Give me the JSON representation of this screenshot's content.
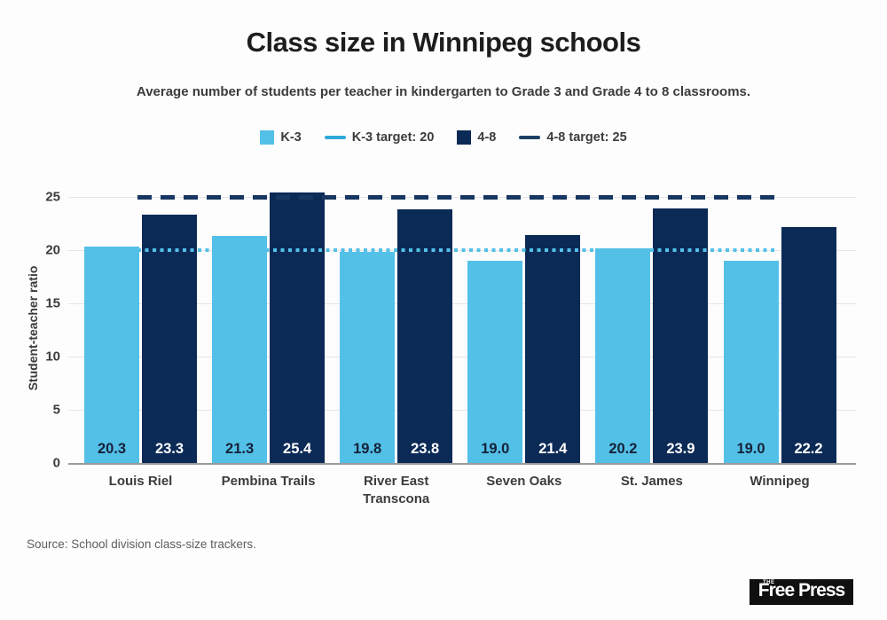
{
  "header": {
    "title": "Class size in Winnipeg schools",
    "subtitle": "Average number of students per teacher in kindergarten to Grade 3 and Grade 4 to 8 classrooms."
  },
  "legend": {
    "items": [
      {
        "label": "K-3",
        "swatch": "square",
        "color": "#53c0e8"
      },
      {
        "label": "K-3 target: 20",
        "swatch": "line",
        "color": "#2fa9da"
      },
      {
        "label": "4-8",
        "swatch": "square",
        "color": "#0c2a56"
      },
      {
        "label": "4-8 target: 25",
        "swatch": "line",
        "color": "#1d4066"
      }
    ]
  },
  "chart_data": {
    "type": "bar",
    "title": "Class size in Winnipeg schools",
    "ylabel": "Student-teacher ratio",
    "ylim": [
      0,
      25
    ],
    "yticks": [
      0,
      5,
      10,
      15,
      20,
      25
    ],
    "grid": true,
    "legend_position": "top",
    "categories": [
      "Louis Riel",
      "Pembina Trails",
      "River East Transcona",
      "Seven Oaks",
      "St. James",
      "Winnipeg"
    ],
    "series": [
      {
        "name": "K-3",
        "color": "#53c0e8",
        "label_color": "#152238",
        "values": [
          20.3,
          21.3,
          19.8,
          19.0,
          20.2,
          19.0
        ]
      },
      {
        "name": "4-8",
        "color": "#0c2a56",
        "label_color": "#ffffff",
        "values": [
          23.3,
          25.4,
          23.8,
          21.4,
          23.9,
          22.2
        ]
      }
    ],
    "targets": [
      {
        "name": "K-3 target: 20",
        "value": 20,
        "color": "#53c0e8",
        "style": "dotted"
      },
      {
        "name": "4-8 target: 25",
        "value": 25,
        "color": "#173762",
        "style": "dashed"
      }
    ]
  },
  "footer": {
    "source": "Source: School division class-size trackers.",
    "logo_the": "THE",
    "logo_text": "Free Press"
  }
}
